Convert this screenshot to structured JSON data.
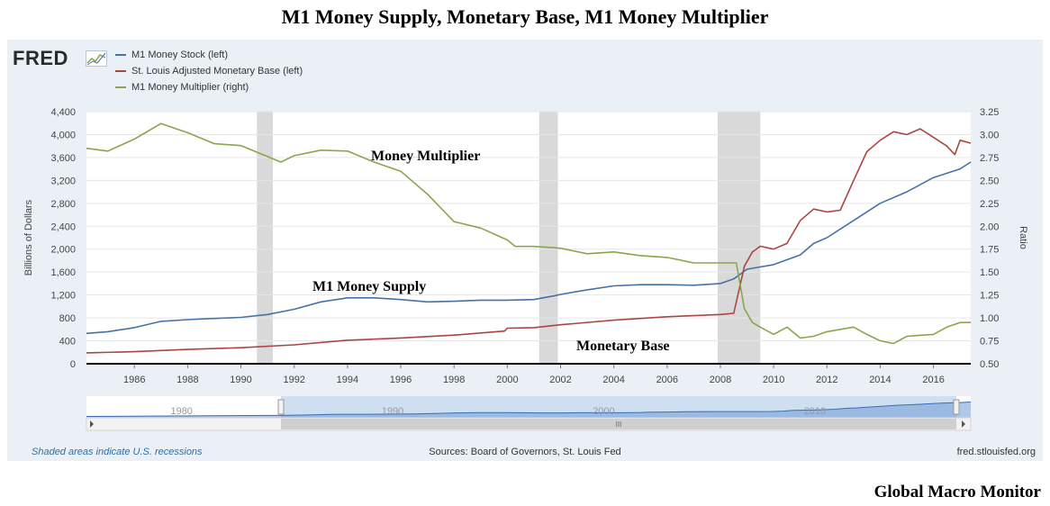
{
  "page_title": "M1 Money Supply,  Monetary Base, M1 Money Multiplier",
  "brand_footer": "Global Macro Monitor",
  "fred_logo_text": "FRED",
  "footer": {
    "recession_note": "Shaded areas indicate U.S. recessions",
    "source": "Sources: Board of Governors, St. Louis Fed",
    "site": "fred.stlouisfed.org"
  },
  "colors": {
    "m1": "#4572a7",
    "base": "#aa4643",
    "multiplier": "#89a54e",
    "recession": "#d9d9d9",
    "navigator": "#6f9ad3"
  },
  "chart_data": {
    "type": "line",
    "title": "M1 Money Supply,  Monetary Base, M1 Money Multiplier",
    "ylabel_left": "Billions of Dollars",
    "ylabel_right": "Ratio",
    "ylim_left": [
      0,
      4400
    ],
    "ylim_right": [
      0.5,
      3.25
    ],
    "yticks_left": [
      "0",
      "400",
      "800",
      "1,200",
      "1,600",
      "2,000",
      "2,400",
      "2,800",
      "3,200",
      "3,600",
      "4,000",
      "4,400"
    ],
    "yticks_right": [
      "0.50",
      "0.75",
      "1.00",
      "1.25",
      "1.50",
      "1.75",
      "2.00",
      "2.25",
      "2.50",
      "2.75",
      "3.00",
      "3.25"
    ],
    "xlim": [
      1984.2,
      2017.4
    ],
    "xticks": [
      "1986",
      "1988",
      "1990",
      "1992",
      "1994",
      "1996",
      "1998",
      "2000",
      "2002",
      "2004",
      "2006",
      "2008",
      "2010",
      "2012",
      "2014",
      "2016"
    ],
    "recessions": [
      [
        1990.6,
        1991.2
      ],
      [
        2001.2,
        2001.9
      ],
      [
        2007.9,
        2009.5
      ]
    ],
    "legend": [
      "M1 Money Stock (left)",
      "St. Louis Adjusted Monetary Base (left)",
      "M1 Money Multiplier (right)"
    ],
    "annotations": [
      "Money Multiplier",
      "M1 Money Supply",
      "Monetary Base"
    ],
    "series": [
      {
        "name": "M1 Money Stock (left)",
        "axis": "left",
        "x": [
          1984.2,
          1985,
          1986,
          1987,
          1988,
          1989,
          1990,
          1991,
          1992,
          1993,
          1994,
          1995,
          1996,
          1997,
          1998,
          1999,
          2000,
          2001,
          2001.8,
          2002,
          2003,
          2004,
          2005,
          2006,
          2007,
          2008,
          2008.5,
          2009,
          2010,
          2011,
          2011.5,
          2012,
          2013,
          2014,
          2015,
          2016,
          2017,
          2017.4
        ],
        "values": [
          530,
          560,
          630,
          740,
          770,
          790,
          810,
          860,
          950,
          1080,
          1150,
          1150,
          1120,
          1080,
          1090,
          1110,
          1110,
          1120,
          1190,
          1210,
          1290,
          1360,
          1380,
          1380,
          1370,
          1400,
          1480,
          1650,
          1730,
          1900,
          2100,
          2200,
          2500,
          2800,
          3000,
          3250,
          3400,
          3520
        ]
      },
      {
        "name": "St. Louis Adjusted Monetary Base (left)",
        "axis": "left",
        "x": [
          1984.2,
          1986,
          1988,
          1990,
          1992,
          1994,
          1996,
          1998,
          1999.9,
          2000,
          2001,
          2002,
          2004,
          2006,
          2008,
          2008.5,
          2008.9,
          2009.2,
          2009.5,
          2010,
          2010.5,
          2011,
          2011.5,
          2012,
          2012.5,
          2013,
          2013.5,
          2014,
          2014.5,
          2015,
          2015.5,
          2016,
          2016.5,
          2016.8,
          2017,
          2017.4
        ],
        "values": [
          190,
          210,
          250,
          280,
          330,
          410,
          450,
          500,
          570,
          620,
          630,
          680,
          760,
          820,
          860,
          880,
          1700,
          1950,
          2050,
          2000,
          2100,
          2500,
          2700,
          2650,
          2680,
          3200,
          3700,
          3900,
          4050,
          4000,
          4100,
          3950,
          3800,
          3650,
          3900,
          3850
        ]
      },
      {
        "name": "M1 Money Multiplier (right)",
        "axis": "right",
        "x": [
          1984.2,
          1985,
          1986,
          1987,
          1988,
          1989,
          1990,
          1991,
          1991.5,
          1992,
          1993,
          1994,
          1995,
          1996,
          1997,
          1998,
          1999,
          2000,
          2000.3,
          2001,
          2002,
          2003,
          2004,
          2005,
          2006,
          2007,
          2008,
          2008.6,
          2008.9,
          2009.2,
          2009.5,
          2010,
          2010.5,
          2011,
          2011.5,
          2012,
          2013,
          2013.5,
          2014,
          2014.5,
          2015,
          2016,
          2016.5,
          2017,
          2017.4
        ],
        "values": [
          2.85,
          2.82,
          2.95,
          3.12,
          3.02,
          2.9,
          2.88,
          2.76,
          2.7,
          2.77,
          2.83,
          2.82,
          2.7,
          2.6,
          2.35,
          2.05,
          1.98,
          1.85,
          1.78,
          1.78,
          1.76,
          1.7,
          1.72,
          1.68,
          1.66,
          1.6,
          1.6,
          1.6,
          1.1,
          0.95,
          0.9,
          0.82,
          0.9,
          0.78,
          0.8,
          0.85,
          0.9,
          0.82,
          0.75,
          0.72,
          0.8,
          0.82,
          0.9,
          0.95,
          0.95
        ]
      }
    ],
    "navigator": {
      "labels": [
        "1980",
        "1990",
        "2000",
        "2010"
      ],
      "scrollbar_glyph": "III"
    }
  }
}
